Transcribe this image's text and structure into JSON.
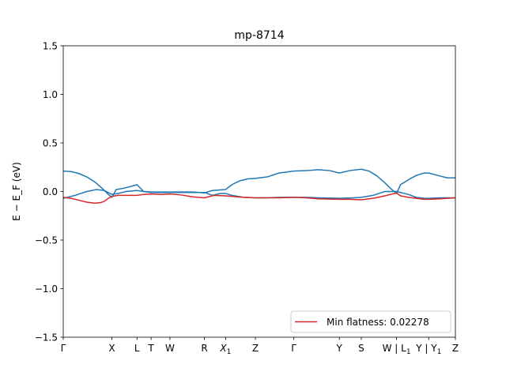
{
  "chart_data": {
    "type": "line",
    "title": "mp-8714",
    "ylabel": "E − E_F (eV)",
    "xlabel": "",
    "ylim": [
      -1.5,
      1.5
    ],
    "xlim": [
      0,
      100
    ],
    "y_ticks": [
      -1.5,
      -1.0,
      -0.5,
      0.0,
      0.5,
      1.0,
      1.5
    ],
    "y_tick_labels": [
      "−1.5",
      "−1.0",
      "−0.5",
      "0.0",
      "0.5",
      "1.0",
      "1.5"
    ],
    "x_ticks": [
      {
        "label": "Γ",
        "x": 0
      },
      {
        "label": "X",
        "x": 12.4
      },
      {
        "label": "L",
        "x": 18.8
      },
      {
        "label": "T",
        "x": 22.4
      },
      {
        "label": "W",
        "x": 27.2
      },
      {
        "label": "R",
        "x": 36.0
      },
      {
        "label": "X",
        "sub": "1",
        "x": 41.4
      },
      {
        "label": "Z",
        "x": 49.0
      },
      {
        "label": "Γ",
        "x": 58.8
      },
      {
        "label": "Y",
        "x": 70.4
      },
      {
        "label": "S",
        "x": 76.0
      },
      {
        "label": "W | L",
        "sub": "1",
        "x": 85.0
      },
      {
        "label": "Y | Y",
        "sub": "1",
        "x": 93.2
      },
      {
        "label": "Z",
        "x": 100
      }
    ],
    "grid": false,
    "legend": {
      "location": "lower-right",
      "entries": [
        {
          "label": "Min flatness: 0.02278",
          "color": "#d62728"
        }
      ]
    },
    "series": [
      {
        "color": "#1f77b4",
        "x": [
          0,
          2,
          4,
          6,
          8,
          10,
          11.5,
          12.4,
          13.5,
          15,
          17,
          18.8,
          20.5,
          22.4,
          25,
          27.2,
          30,
          33,
          36,
          38,
          41.4,
          43,
          45,
          47,
          49,
          52,
          55,
          58.8,
          62,
          65,
          68,
          70.4,
          73,
          76,
          78,
          80,
          82,
          83.5,
          85.0,
          86,
          88,
          90,
          92,
          93.2,
          96,
          98,
          100
        ],
        "y": [
          0.21,
          0.205,
          0.185,
          0.15,
          0.1,
          0.03,
          -0.03,
          -0.06,
          0.02,
          0.03,
          0.05,
          0.07,
          0.0,
          -0.005,
          -0.005,
          -0.005,
          -0.005,
          -0.005,
          -0.015,
          0.01,
          0.02,
          0.07,
          0.11,
          0.13,
          0.135,
          0.15,
          0.19,
          0.21,
          0.215,
          0.225,
          0.215,
          0.19,
          0.215,
          0.23,
          0.21,
          0.16,
          0.09,
          0.03,
          -0.02,
          0.07,
          0.12,
          0.165,
          0.19,
          0.19,
          0.16,
          0.14,
          0.14
        ]
      },
      {
        "color": "#1f77b4",
        "x": [
          0,
          3,
          6,
          8.5,
          10.5,
          12.4,
          14,
          16,
          18.8,
          20.5,
          22.4,
          25,
          27.2,
          30,
          33,
          36,
          38,
          40,
          41.4,
          43,
          46,
          49,
          52,
          55,
          58.8,
          62,
          65,
          70.4,
          74,
          76.0,
          79,
          82,
          85.0,
          86,
          88,
          90,
          92,
          93.2,
          96,
          100
        ],
        "y": [
          -0.07,
          -0.04,
          0.0,
          0.02,
          0.01,
          -0.03,
          -0.02,
          0.0,
          0.01,
          0.0,
          -0.01,
          -0.01,
          -0.01,
          -0.01,
          -0.01,
          -0.01,
          -0.04,
          -0.02,
          -0.02,
          -0.04,
          -0.06,
          -0.065,
          -0.065,
          -0.06,
          -0.06,
          -0.06,
          -0.065,
          -0.07,
          -0.065,
          -0.06,
          -0.04,
          0.0,
          0.0,
          -0.01,
          -0.03,
          -0.06,
          -0.07,
          -0.07,
          -0.065,
          -0.065
        ]
      },
      {
        "color": "#d62728",
        "x": [
          0,
          2,
          4,
          6,
          8,
          9.5,
          10.5,
          11.5,
          12.4,
          14,
          16,
          18.8,
          20.5,
          22.4,
          25,
          27.2,
          30,
          33,
          36,
          38.5,
          41.4,
          43,
          46,
          49,
          52,
          55,
          58.8,
          62,
          65,
          70.4,
          73,
          76.0,
          79,
          82,
          84,
          85.0,
          86,
          88,
          90,
          92,
          93.2,
          96,
          98,
          100
        ],
        "y": [
          -0.06,
          -0.07,
          -0.09,
          -0.11,
          -0.12,
          -0.115,
          -0.1,
          -0.07,
          -0.05,
          -0.04,
          -0.04,
          -0.04,
          -0.03,
          -0.025,
          -0.03,
          -0.025,
          -0.035,
          -0.055,
          -0.065,
          -0.04,
          -0.045,
          -0.05,
          -0.06,
          -0.065,
          -0.065,
          -0.065,
          -0.06,
          -0.065,
          -0.075,
          -0.08,
          -0.08,
          -0.085,
          -0.07,
          -0.045,
          -0.025,
          -0.015,
          -0.045,
          -0.06,
          -0.07,
          -0.08,
          -0.08,
          -0.075,
          -0.07,
          -0.065
        ]
      }
    ]
  }
}
